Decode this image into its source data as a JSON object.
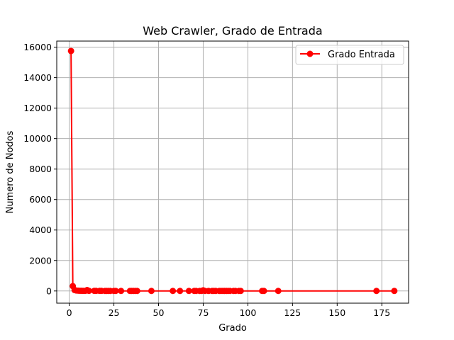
{
  "chart_data": {
    "type": "line",
    "title": "Web Crawler, Grado de Entrada",
    "xlabel": "Grado",
    "ylabel": "Numero de Nodos",
    "xlim": [
      -7,
      190
    ],
    "ylim": [
      -800,
      16400
    ],
    "xticks": [
      0,
      25,
      50,
      75,
      100,
      125,
      150,
      175
    ],
    "yticks": [
      0,
      2000,
      4000,
      6000,
      8000,
      10000,
      12000,
      14000,
      16000
    ],
    "grid": true,
    "legend_position": "top-right",
    "colors": {
      "series": "#ff0000",
      "grid": "#b0b0b0",
      "axis": "#000000"
    },
    "series": [
      {
        "name": "Grado Entrada",
        "marker": "circle",
        "x": [
          1,
          2,
          3,
          4,
          5,
          6,
          7,
          8,
          9,
          10,
          11,
          14,
          15,
          17,
          18,
          20,
          21,
          22,
          23,
          25,
          26,
          29,
          34,
          35,
          36,
          37,
          38,
          46,
          58,
          62,
          67,
          70,
          71,
          73,
          74,
          75,
          76,
          78,
          80,
          81,
          82,
          84,
          85,
          86,
          87,
          88,
          89,
          90,
          92,
          93,
          95,
          96,
          108,
          109,
          117,
          172,
          182
        ],
        "y": [
          15750,
          320,
          60,
          30,
          20,
          15,
          12,
          10,
          8,
          60,
          10,
          8,
          6,
          5,
          5,
          4,
          4,
          3,
          3,
          3,
          3,
          2,
          2,
          2,
          2,
          2,
          2,
          2,
          2,
          2,
          2,
          2,
          2,
          2,
          2,
          40,
          2,
          2,
          2,
          2,
          2,
          2,
          2,
          2,
          2,
          2,
          2,
          2,
          2,
          2,
          2,
          2,
          2,
          2,
          2,
          2,
          2
        ]
      }
    ]
  }
}
